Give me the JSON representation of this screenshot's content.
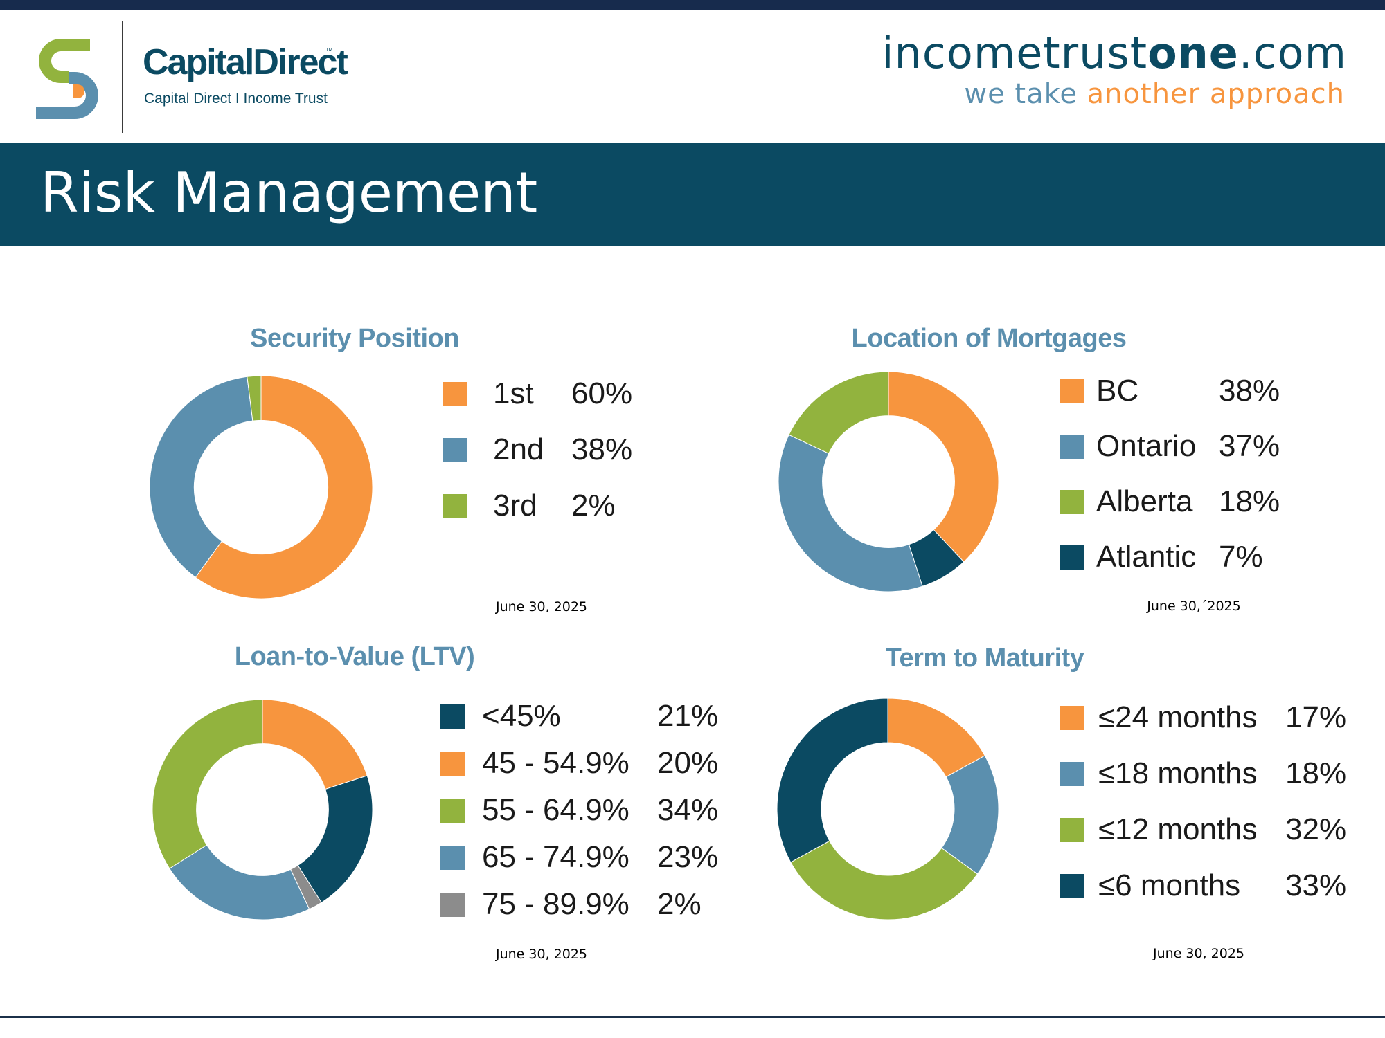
{
  "header": {
    "brand_name": "CapitalDirect",
    "brand_tm": "™",
    "brand_tagline": "Capital Direct I Income Trust",
    "site_url_a": "incometrust",
    "site_url_b": "one",
    "site_url_c": ".com",
    "slogan_a": "we take ",
    "slogan_b": "another approach"
  },
  "page": {
    "title": "Risk Management"
  },
  "colors": {
    "orange": "#f7953e",
    "blue": "#5b8fae",
    "green": "#92b33e",
    "navy": "#0b4a62",
    "gray": "#8c8c8c"
  },
  "chart_data": [
    {
      "type": "pie",
      "title": "Security Position",
      "date": "June 30, 2025",
      "categories": [
        "1st",
        "2nd",
        "3rd"
      ],
      "values": [
        60,
        38,
        2
      ],
      "value_labels": [
        "60%",
        "38%",
        "2%"
      ],
      "colors": [
        "#f7953e",
        "#5b8fae",
        "#92b33e"
      ],
      "legend": "right"
    },
    {
      "type": "pie",
      "title": "Location of Mortgages",
      "date": "June 30,´2025",
      "categories": [
        "BC",
        "Ontario",
        "Alberta",
        "Atlantic"
      ],
      "values": [
        38,
        37,
        18,
        7
      ],
      "value_labels": [
        "38%",
        "37%",
        "18%",
        "7%"
      ],
      "colors": [
        "#f7953e",
        "#5b8fae",
        "#92b33e",
        "#0b4a62"
      ],
      "legend": "right"
    },
    {
      "type": "pie",
      "title": "Loan-to-Value (LTV)",
      "date": "June 30, 2025",
      "categories": [
        "<45%",
        "45 - 54.9%",
        "55 - 64.9%",
        "65 - 74.9%",
        "75 - 89.9%"
      ],
      "values": [
        21,
        20,
        34,
        23,
        2
      ],
      "value_labels": [
        "21%",
        "20%",
        "34%",
        "23%",
        "2%"
      ],
      "colors": [
        "#0b4a62",
        "#f7953e",
        "#92b33e",
        "#5b8fae",
        "#8c8c8c"
      ],
      "legend": "right"
    },
    {
      "type": "pie",
      "title": "Term to Maturity",
      "date": "June 30, 2025",
      "categories": [
        "≤24 months",
        "≤18 months",
        "≤12 months",
        "≤6 months"
      ],
      "values": [
        17,
        18,
        32,
        33
      ],
      "value_labels": [
        "17%",
        "18%",
        "32%",
        "33%"
      ],
      "colors": [
        "#f7953e",
        "#5b8fae",
        "#92b33e",
        "#0b4a62"
      ],
      "legend": "right"
    }
  ]
}
